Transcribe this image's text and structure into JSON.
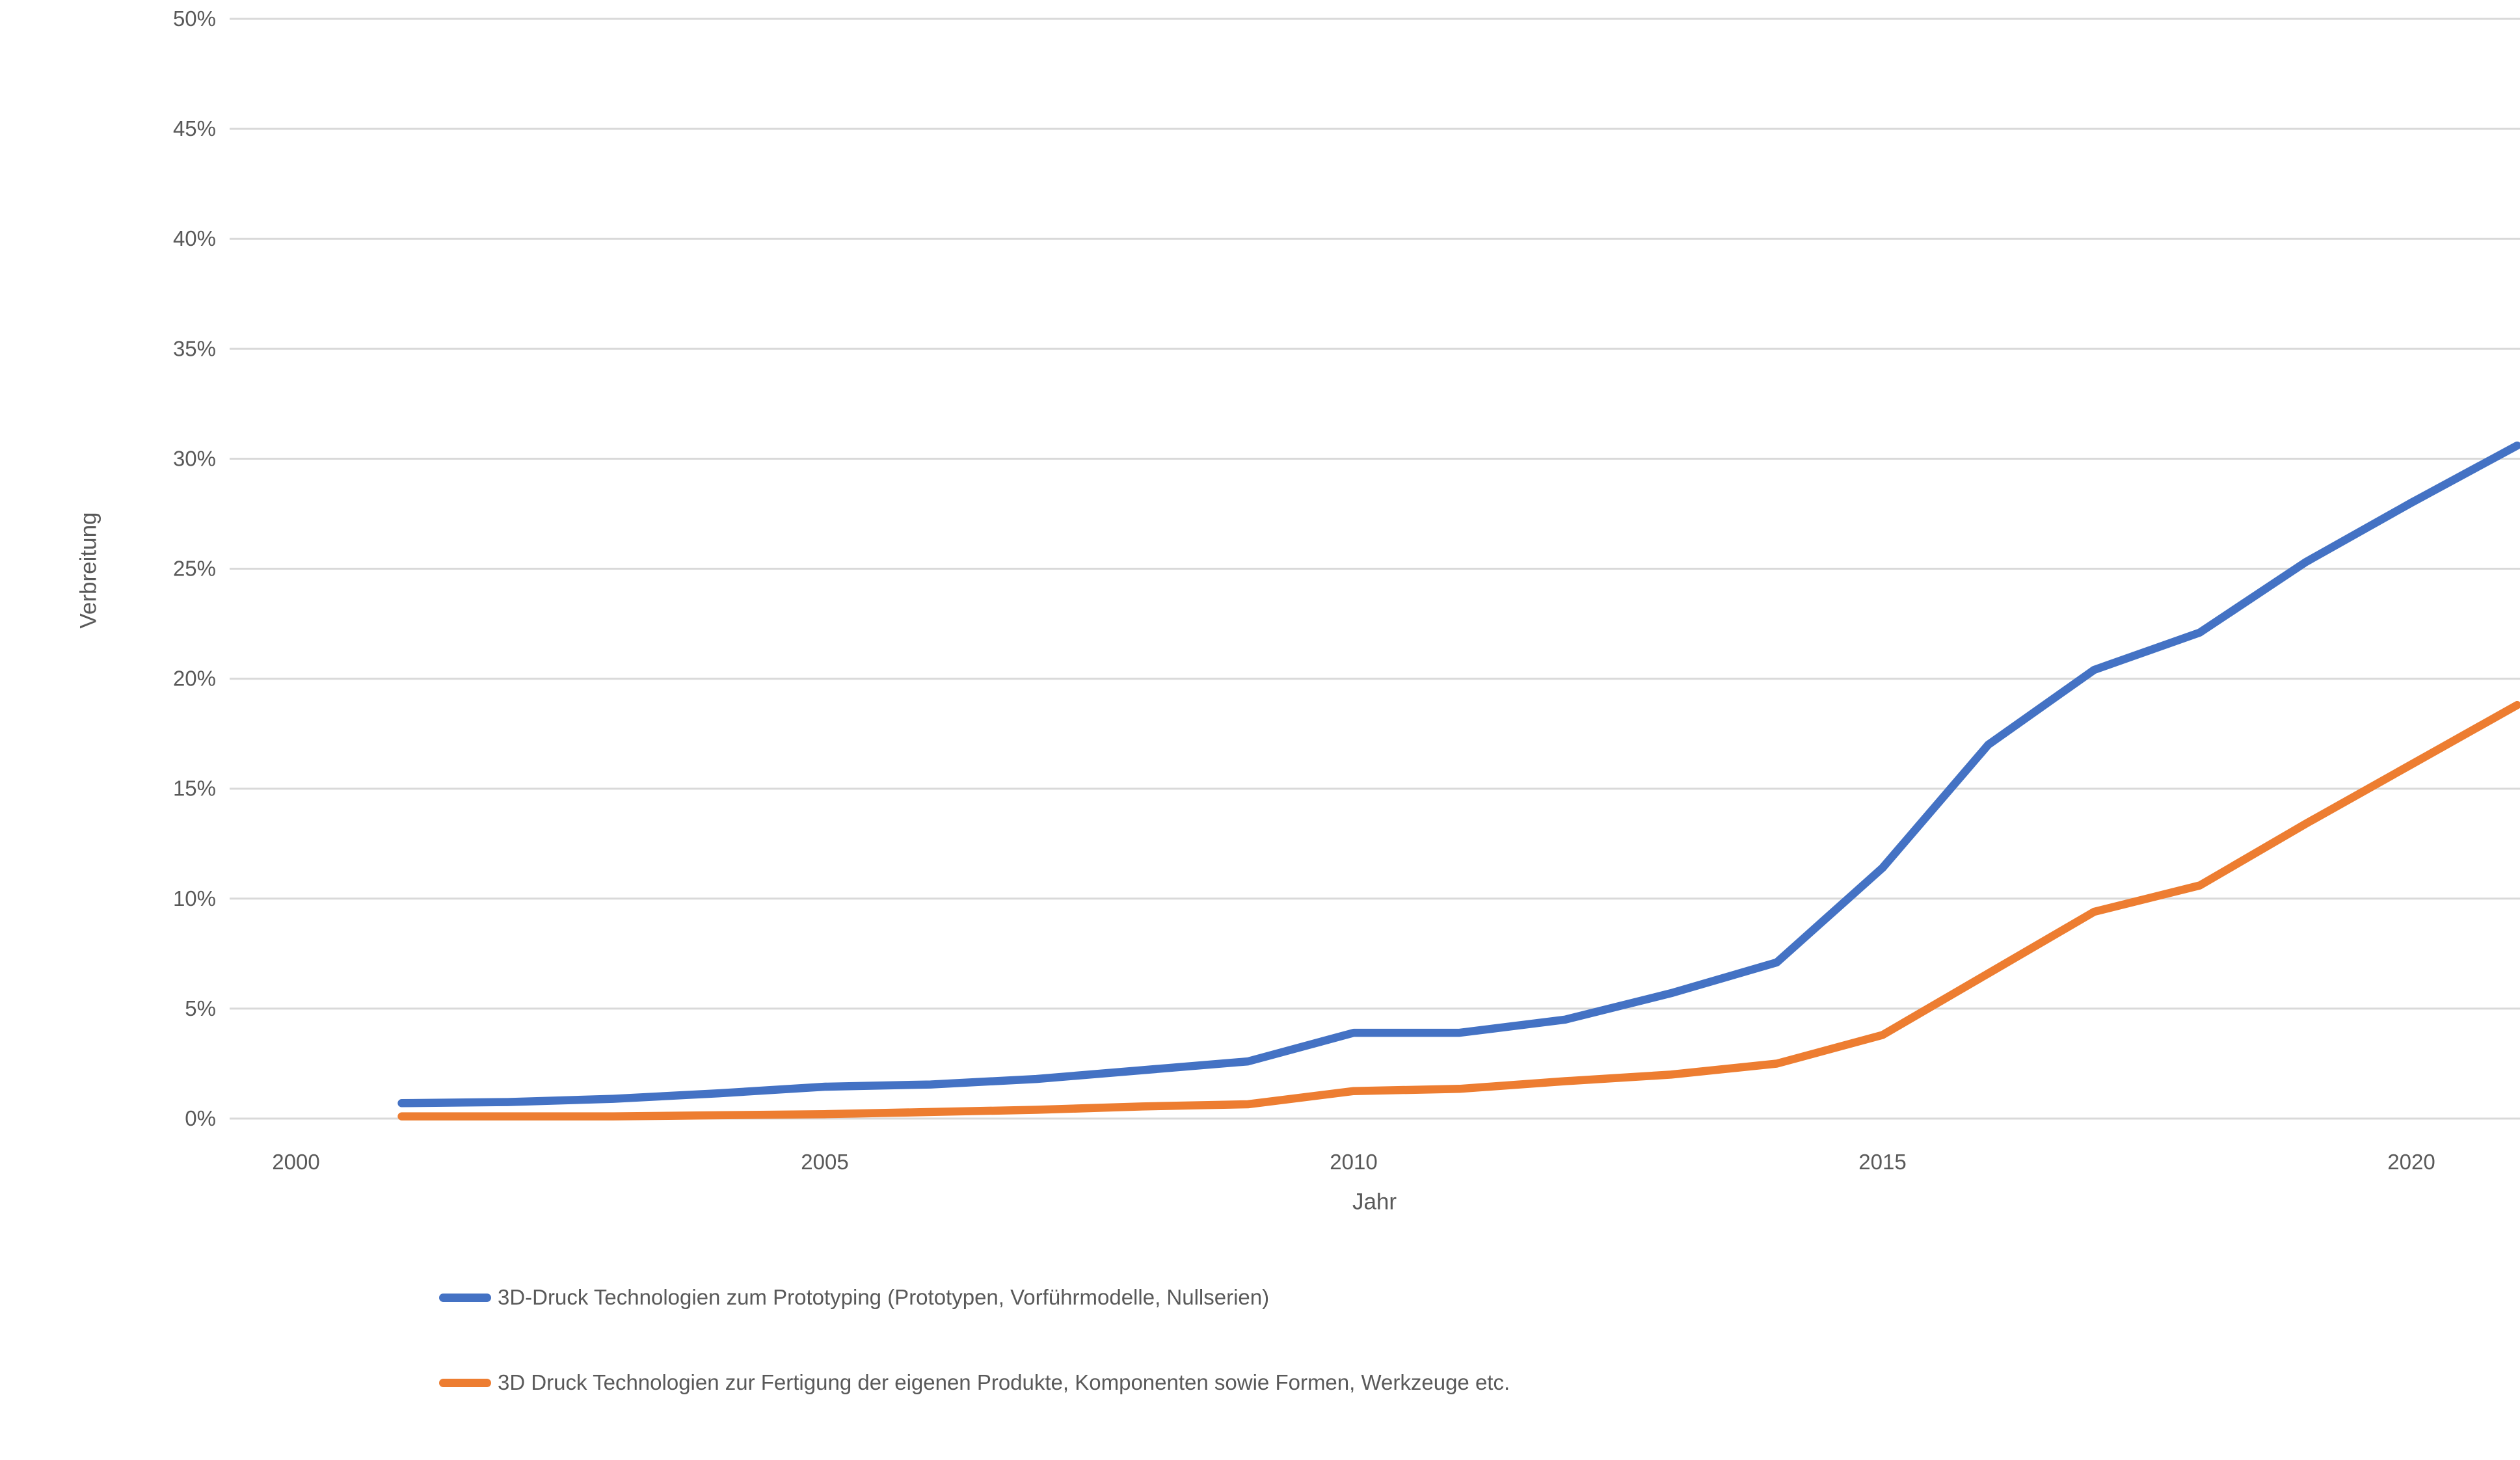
{
  "chart_data": {
    "type": "line",
    "title": "",
    "xlabel": "Jahr",
    "ylabel": "Verbreitung",
    "x": [
      2001,
      2002,
      2003,
      2004,
      2005,
      2006,
      2007,
      2008,
      2009,
      2010,
      2011,
      2012,
      2013,
      2014,
      2015,
      2016,
      2017,
      2018,
      2019,
      2020,
      2021
    ],
    "series": [
      {
        "name": "3D-Druck Technologien zum Prototyping (Prototypen, Vorführmodelle, Nullserien)",
        "color": "#4472C4",
        "values": [
          0.7,
          0.75,
          0.9,
          1.15,
          1.45,
          1.55,
          1.8,
          2.2,
          2.6,
          3.9,
          3.9,
          4.5,
          5.7,
          7.1,
          11.4,
          17.0,
          20.4,
          22.1,
          25.3,
          28.0,
          30.6
        ]
      },
      {
        "name": "3D Druck Technologien zur Fertigung der eigenen Produkte, Komponenten sowie Formen, Werkzeuge etc.",
        "color": "#ED7D31",
        "values": [
          0.1,
          0.1,
          0.1,
          0.15,
          0.2,
          0.3,
          0.4,
          0.55,
          0.65,
          1.25,
          1.35,
          1.7,
          2.0,
          2.5,
          3.8,
          6.6,
          9.4,
          10.6,
          13.4,
          16.1,
          18.8
        ]
      }
    ],
    "x_ticks": [
      2000,
      2005,
      2010,
      2015,
      2020
    ],
    "y_ticks": [
      "0%",
      "5%",
      "10%",
      "15%",
      "20%",
      "25%",
      "30%",
      "35%",
      "40%",
      "45%",
      "50%"
    ],
    "ylim": [
      0,
      50
    ],
    "xlim": [
      2000,
      2021
    ],
    "grid": true,
    "legend_position": "bottom-left"
  },
  "colors": {
    "gridline": "#D9D9D9",
    "text": "#595959",
    "background": "#FFFFFF"
  }
}
